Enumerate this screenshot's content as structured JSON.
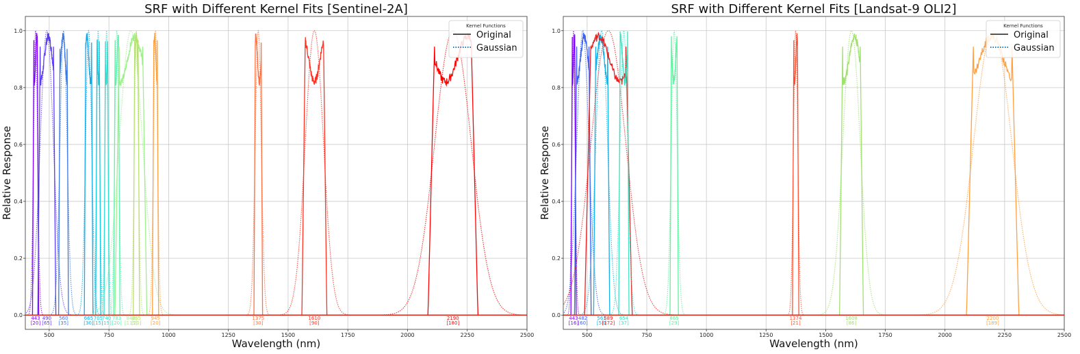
{
  "chart_data": [
    {
      "type": "line",
      "title": "SRF with Different Kernel Fits [Sentinel-2A]",
      "xlabel": "Wavelength (nm)",
      "ylabel": "Relative Response",
      "xlim": [
        400,
        2500
      ],
      "ylim": [
        0,
        1.0
      ],
      "grid": true,
      "xticks": [
        500,
        750,
        1000,
        1250,
        1500,
        1750,
        2000,
        2250,
        2500
      ],
      "xtick_labels": [
        "500",
        "750",
        "1000",
        "1250",
        "1500",
        "1750",
        "2000",
        "2250",
        "2500"
      ],
      "yticks": [
        0,
        0.2,
        0.4,
        0.6,
        0.8,
        1.0
      ],
      "ytick_labels": [
        "0.0",
        "0.2",
        "0.4",
        "0.6",
        "0.8",
        "1.0"
      ],
      "legend": {
        "title": "Kernel Functions",
        "placement": "top-right",
        "entries": [
          {
            "label": "Original",
            "style": "solid",
            "color": "#555555"
          },
          {
            "label": "Gaussian",
            "style": "dotted",
            "color": "#1f77b4"
          }
        ]
      },
      "bands": [
        {
          "center": 443,
          "fwhm": 20,
          "color": "#8000ff",
          "label_center": "443",
          "label_fwhm": "[20]"
        },
        {
          "center": 490,
          "fwhm": 65,
          "color": "#5a3cf5",
          "label_center": "490",
          "label_fwhm": "[65]"
        },
        {
          "center": 560,
          "fwhm": 35,
          "color": "#3a78e8",
          "label_center": "560",
          "label_fwhm": "[35]"
        },
        {
          "center": 665,
          "fwhm": 30,
          "color": "#12a8e8",
          "label_center": "665",
          "label_fwhm": "[30]"
        },
        {
          "center": 705,
          "fwhm": 15,
          "color": "#12c8e0",
          "label_center": "705",
          "label_fwhm": "[15]"
        },
        {
          "center": 740,
          "fwhm": 15,
          "color": "#30dcd0",
          "label_center": "740",
          "label_fwhm": "[15]"
        },
        {
          "center": 783,
          "fwhm": 20,
          "color": "#60f0b0",
          "label_center": "783",
          "label_fwhm": "[20]"
        },
        {
          "center": 842,
          "fwhm": 115,
          "color": "#9ef08c",
          "label_center": "842",
          "label_fwhm": "[115]"
        },
        {
          "center": 865,
          "fwhm": 20,
          "color": "#b8e070",
          "label_center": "865",
          "label_fwhm": "[20]"
        },
        {
          "center": 945,
          "fwhm": 20,
          "color": "#ffa040",
          "label_center": "945",
          "label_fwhm": "[20]"
        },
        {
          "center": 1375,
          "fwhm": 30,
          "color": "#ff7040",
          "label_center": "1375",
          "label_fwhm": "[30]"
        },
        {
          "center": 1610,
          "fwhm": 90,
          "color": "#ff3020",
          "label_center": "1610",
          "label_fwhm": "[90]"
        },
        {
          "center": 2190,
          "fwhm": 180,
          "color": "#ff0000",
          "label_center": "2190",
          "label_fwhm": "[180]"
        }
      ]
    },
    {
      "type": "line",
      "title": "SRF with Different Kernel Fits [Landsat-9 OLI2]",
      "xlabel": "Wavelength (nm)",
      "ylabel": "Relative Response",
      "xlim": [
        400,
        2500
      ],
      "ylim": [
        0,
        1.0
      ],
      "grid": true,
      "xticks": [
        500,
        750,
        1000,
        1250,
        1500,
        1750,
        2000,
        2250,
        2500
      ],
      "xtick_labels": [
        "500",
        "750",
        "1000",
        "1250",
        "1500",
        "1750",
        "2000",
        "2250",
        "2500"
      ],
      "yticks": [
        0,
        0.2,
        0.4,
        0.6,
        0.8,
        1.0
      ],
      "ytick_labels": [
        "0.0",
        "0.2",
        "0.4",
        "0.6",
        "0.8",
        "1.0"
      ],
      "legend": {
        "title": "Kernel Functions",
        "placement": "top-right",
        "entries": [
          {
            "label": "Original",
            "style": "solid",
            "color": "#555555"
          },
          {
            "label": "Gaussian",
            "style": "dotted",
            "color": "#1f77b4"
          }
        ]
      },
      "bands": [
        {
          "center": 443,
          "fwhm": 16,
          "color": "#8000ff",
          "label_center": "443",
          "label_fwhm": "[16]"
        },
        {
          "center": 482,
          "fwhm": 60,
          "color": "#3a60f0",
          "label_center": "482",
          "label_fwhm": "[60]"
        },
        {
          "center": 561,
          "fwhm": 58,
          "color": "#12b0e8",
          "label_center": "561",
          "label_fwhm": "[58]"
        },
        {
          "center": 589,
          "fwhm": 172,
          "color": "#e82020",
          "label_center": "589",
          "label_fwhm": "[172]"
        },
        {
          "center": 654,
          "fwhm": 37,
          "color": "#40e0c0",
          "label_center": "654",
          "label_fwhm": "[37]"
        },
        {
          "center": 865,
          "fwhm": 29,
          "color": "#60f0a0",
          "label_center": "865",
          "label_fwhm": "[29]"
        },
        {
          "center": 1374,
          "fwhm": 21,
          "color": "#ff5030",
          "label_center": "1374",
          "label_fwhm": "[21]"
        },
        {
          "center": 1608,
          "fwhm": 86,
          "color": "#a0e070",
          "label_center": "1608",
          "label_fwhm": "[86]"
        },
        {
          "center": 2200,
          "fwhm": 189,
          "color": "#ffa040",
          "label_center": "2200",
          "label_fwhm": "[189]"
        }
      ]
    }
  ]
}
